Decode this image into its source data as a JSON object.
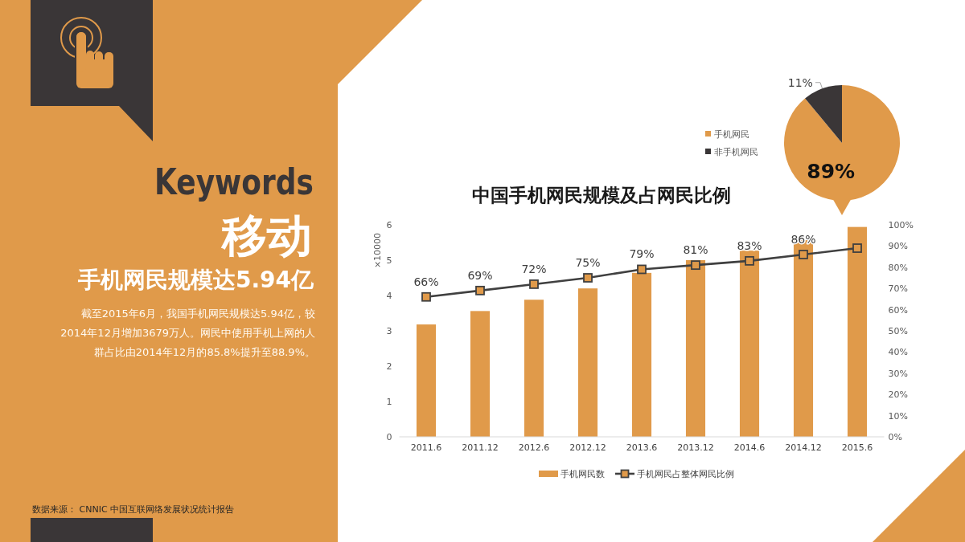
{
  "chart_data": [
    {
      "type": "other",
      "title": "Keywords",
      "subtitle": "移动",
      "annotations": [
        "手机网民规模达5.94亿",
        "截至2015年6月，我国手机网民规模达5.94亿，较2014年12月增加3679万人。网民中使用手机上网的人群占比由2014年12月的85.8%提升至88.9%。",
        "数据来源： CNNIC 中国互联网络发展状况统计报告"
      ]
    },
    {
      "type": "pie",
      "categories": [
        "手机网民",
        "非手机网民"
      ],
      "values": [
        89,
        11
      ],
      "colors": [
        "#e09a4a",
        "#3a3637"
      ],
      "value_labels": [
        "89%",
        "11%"
      ],
      "legend": "left"
    },
    {
      "type": "bar",
      "title": "中国手机网民规模及占网民比例",
      "ylabel": "×10000",
      "categories": [
        "2011.6",
        "2011.12",
        "2012.6",
        "2012.12",
        "2013.6",
        "2013.12",
        "2014.6",
        "2014.12",
        "2015.6"
      ],
      "series": [
        {
          "name": "手机网民数",
          "type": "bar",
          "color": "#e09a4a",
          "values": [
            3.18,
            3.56,
            3.88,
            4.2,
            4.64,
            5.0,
            5.27,
            5.57,
            5.94
          ]
        },
        {
          "name": "手机网民占整体网民比例",
          "type": "line",
          "axis": "y2",
          "color": "#404040",
          "marker": "square",
          "values": [
            66,
            69,
            72,
            75,
            79,
            81,
            83,
            86,
            89
          ],
          "value_labels": [
            "66%",
            "69%",
            "72%",
            "75%",
            "79%",
            "81%",
            "83%",
            "86%",
            null
          ]
        }
      ],
      "ylim": [
        0,
        6
      ],
      "yticks": [
        0,
        1,
        2,
        3,
        4,
        5,
        6
      ],
      "y2lim": [
        0,
        100
      ],
      "y2ticks": [
        {
          "value": 0,
          "label": "0%"
        },
        {
          "value": 10,
          "label": "10%"
        },
        {
          "value": 20,
          "label": "20%"
        },
        {
          "value": 30,
          "label": "30%"
        },
        {
          "value": 40,
          "label": "40%"
        },
        {
          "value": 50,
          "label": "50%"
        },
        {
          "value": 60,
          "label": "60%"
        },
        {
          "value": 70,
          "label": "70%"
        },
        {
          "value": 80,
          "label": "80%"
        },
        {
          "value": 90,
          "label": "90%"
        },
        {
          "value": 100,
          "label": "100%"
        }
      ],
      "legend": "bottom"
    }
  ]
}
